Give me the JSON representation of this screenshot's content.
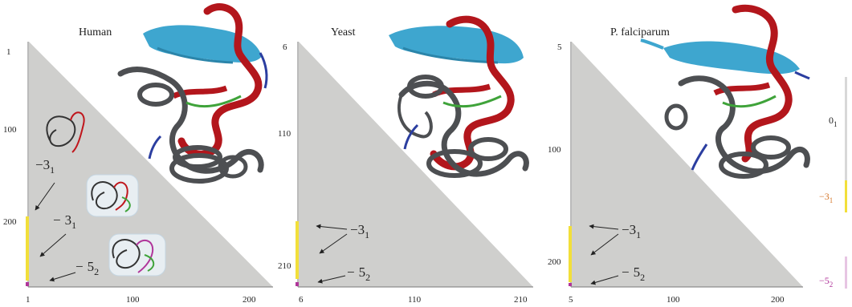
{
  "panels": [
    {
      "title": "Human",
      "y_ticks": [
        "1",
        "100",
        "200"
      ],
      "x_ticks": [
        "1",
        "100",
        "200"
      ],
      "knot_labels": [
        "3",
        "3",
        "5"
      ],
      "knot_subscripts": [
        "1",
        "1",
        "2"
      ]
    },
    {
      "title": "Yeast",
      "y_ticks": [
        "6",
        "110",
        "210"
      ],
      "x_ticks": [
        "6",
        "110",
        "210"
      ],
      "knot_labels": [
        "3",
        "5"
      ],
      "knot_subscripts": [
        "1",
        "2"
      ]
    },
    {
      "title": "P. falciparum",
      "y_ticks": [
        "5",
        "100",
        "200"
      ],
      "x_ticks": [
        "5",
        "100",
        "200"
      ],
      "knot_labels": [
        "3",
        "5"
      ],
      "knot_subscripts": [
        "1",
        "2"
      ]
    }
  ],
  "legend": {
    "items": [
      {
        "main": "0",
        "sub": "1",
        "color": "#444444"
      },
      {
        "main": "−3",
        "sub": "1",
        "color": "#d4762a"
      },
      {
        "main": "−5",
        "sub": "2",
        "color": "#b0359a"
      }
    ]
  },
  "colors": {
    "triangle": "#cfcfcd",
    "helix_blue": "#3ea6cf",
    "helix_red": "#b3161c",
    "coil_gray": "#4d4f52",
    "knot_green": "#3fa33a",
    "marker_yellow": "#f2df3a"
  }
}
